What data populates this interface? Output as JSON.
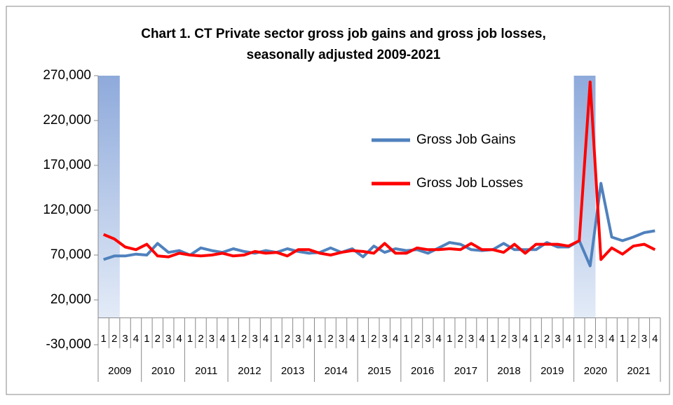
{
  "chart_data": {
    "type": "line",
    "title": [
      "Chart 1. CT Private sector gross job gains and gross job losses,",
      "seasonally adjusted 2009-2021"
    ],
    "categories": [
      "1",
      "2",
      "3",
      "4",
      "1",
      "2",
      "3",
      "4",
      "1",
      "2",
      "3",
      "4",
      "1",
      "2",
      "3",
      "4",
      "1",
      "2",
      "3",
      "4",
      "1",
      "2",
      "3",
      "4",
      "1",
      "2",
      "3",
      "4",
      "1",
      "2",
      "3",
      "4",
      "1",
      "2",
      "3",
      "4",
      "1",
      "2",
      "3",
      "4",
      "1",
      "2",
      "3",
      "4",
      "1",
      "2",
      "3",
      "4",
      "1",
      "2",
      "3",
      "4"
    ],
    "category_groups": [
      "2009",
      "2010",
      "2011",
      "2012",
      "2013",
      "2014",
      "2015",
      "2016",
      "2017",
      "2018",
      "2019",
      "2020",
      "2021"
    ],
    "series": [
      {
        "name": "Gross Job Gains",
        "color": "#4f81bd",
        "values": [
          65000,
          69000,
          69000,
          71000,
          70000,
          83000,
          73000,
          75000,
          70000,
          78000,
          75000,
          73000,
          77000,
          74000,
          72000,
          75000,
          73000,
          77000,
          74000,
          72000,
          73000,
          78000,
          73000,
          77000,
          68000,
          80000,
          73000,
          77000,
          75000,
          76000,
          72000,
          78000,
          84000,
          82000,
          76000,
          75000,
          76000,
          83000,
          76000,
          76000,
          76000,
          84000,
          79000,
          79000,
          86000,
          58000,
          150000,
          90000,
          86000,
          90000,
          95000,
          97000
        ]
      },
      {
        "name": "Gross Job Losses",
        "color": "#ff0000",
        "values": [
          93000,
          88000,
          79000,
          76000,
          82000,
          69000,
          68000,
          72000,
          70000,
          69000,
          70000,
          72000,
          69000,
          70000,
          74000,
          72000,
          73000,
          69000,
          76000,
          76000,
          72000,
          70000,
          73000,
          75000,
          74000,
          72000,
          83000,
          72000,
          72000,
          78000,
          76000,
          76000,
          77000,
          76000,
          83000,
          76000,
          76000,
          73000,
          82000,
          72000,
          82000,
          82000,
          82000,
          80000,
          86000,
          263000,
          65000,
          78000,
          71000,
          80000,
          82000,
          76000
        ]
      }
    ],
    "shaded_ranges": [
      {
        "start": 0,
        "end": 1
      },
      {
        "start": 44,
        "end": 45
      }
    ],
    "ylim": [
      -30000,
      270000
    ],
    "yticks": [
      {
        "value": -30000,
        "label": "-30,000"
      },
      {
        "value": 20000,
        "label": "20,000"
      },
      {
        "value": 70000,
        "label": "70,000"
      },
      {
        "value": 120000,
        "label": "120,000"
      },
      {
        "value": 170000,
        "label": "170,000"
      },
      {
        "value": 220000,
        "label": "220,000"
      },
      {
        "value": 270000,
        "label": "270,000"
      }
    ]
  }
}
